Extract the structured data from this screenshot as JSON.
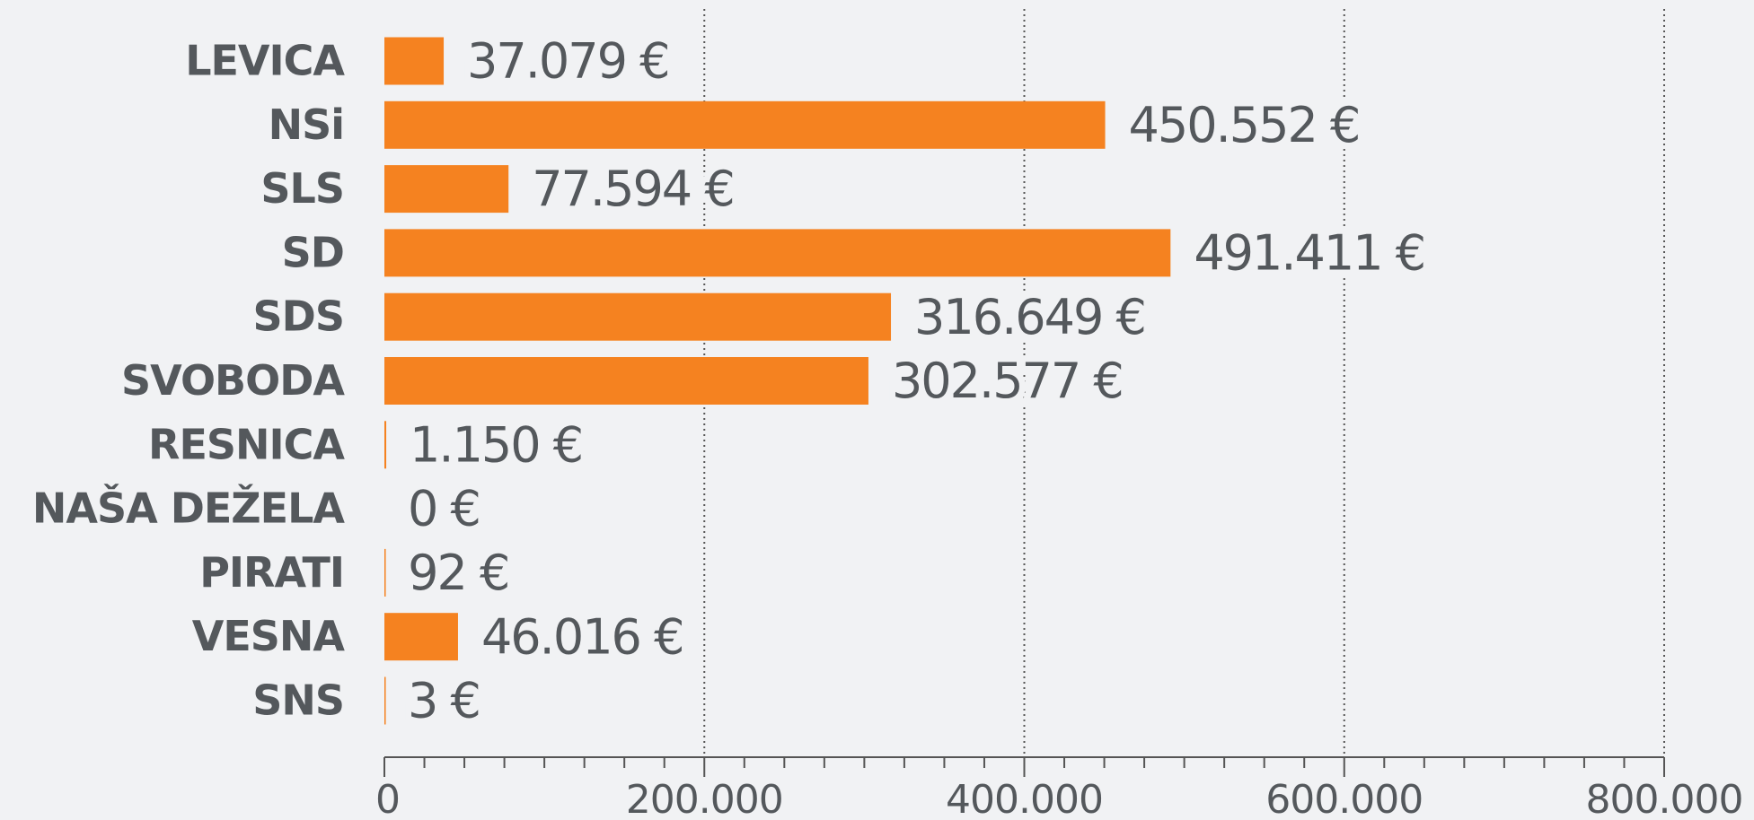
{
  "chart_data": {
    "type": "bar",
    "orientation": "horizontal",
    "categories": [
      "LEVICA",
      "NSi",
      "SLS",
      "SD",
      "SDS",
      "SVOBODA",
      "RESNICA",
      "NAŠA DEŽELA",
      "PIRATI",
      "VESNA",
      "SNS"
    ],
    "values": [
      37079,
      450552,
      77594,
      491411,
      316649,
      302577,
      1150,
      0,
      92,
      46016,
      3
    ],
    "value_labels": [
      "37.079 €",
      "450.552 €",
      "77.594 €",
      "491.411 €",
      "316.649 €",
      "302.577 €",
      "1.150 €",
      "0 €",
      "92 €",
      "46.016 €",
      "3 €"
    ],
    "color": "#f58220",
    "xlim": [
      0,
      800000
    ],
    "xticks": [
      0,
      {
        "value": 200000,
        "label": "200.000"
      },
      {
        "value": 400000,
        "label": "400.000"
      },
      {
        "value": 600000,
        "label": "600.000"
      },
      {
        "value": 800000,
        "label": "800.000"
      }
    ],
    "xminorticks": [
      25000,
      50000,
      75000,
      100000,
      125000,
      150000,
      175000,
      225000,
      250000,
      275000,
      300000,
      325000,
      350000,
      375000,
      425000,
      450000,
      475000,
      500000,
      525000,
      550000,
      575000,
      625000,
      650000,
      675000,
      700000,
      725000,
      750000,
      775000
    ],
    "grid": true
  }
}
